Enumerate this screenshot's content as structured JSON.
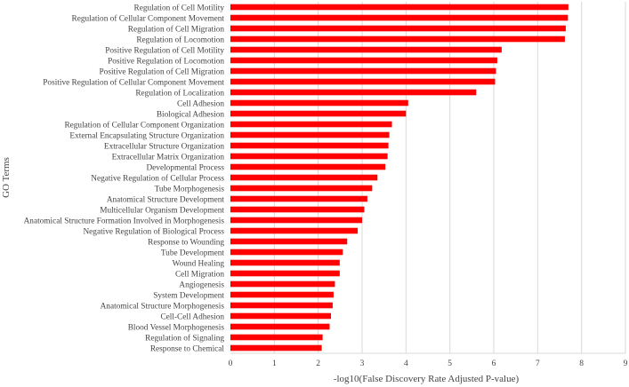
{
  "chart_data": {
    "type": "bar",
    "orientation": "horizontal",
    "xlabel": "-log10(False  Discovery  Rate Adjusted  P-value)",
    "ylabel": "GO Terms",
    "xlim": [
      0,
      9
    ],
    "xticks": [
      0,
      1,
      2,
      3,
      4,
      5,
      6,
      7,
      8,
      9
    ],
    "grid": "vertical",
    "legend": "none",
    "bar_color": "#ff0000",
    "categories": [
      "Regulation of Cell Motility",
      "Regulation of Cellular Component Movement",
      "Regulation of Cell Migration",
      "Regulation of Locomotion",
      "Positive Regulation of Cell Motility",
      "Positive Regulation of Locomotion",
      "Positive Regulation of Cell Migration",
      "Positive Regulation of Cellular Component Movement",
      "Regulation of Localization",
      "Cell Adhesion",
      "Biological Adhesion",
      "Regulation of Cellular Component Organization",
      "External Encapsulating Structure Organization",
      "Extracellular Structure Organization",
      "Extracellular Matrix Organization",
      "Developmental Process",
      "Negative Regulation of Cellular Process",
      "Tube Morphogenesis",
      "Anatomical Structure Development",
      "Multicellular Organism Development",
      "Anatomical Structure Formation Involved in Morphogenesis",
      "Negative Regulation of Biological Process",
      "Response to Wounding",
      "Tube Development",
      "Wound Healing",
      "Cell Migration",
      "Angiogenesis",
      "System Development",
      "Anatomical Structure Morphogenesis",
      "Cell-Cell Adhesion",
      "Blood Vessel Morphogenesis",
      "Regulation of Signaling",
      "Response to Chemical"
    ],
    "values": [
      7.7,
      7.69,
      7.64,
      7.62,
      6.18,
      6.08,
      6.05,
      6.03,
      5.6,
      4.05,
      4.0,
      3.68,
      3.62,
      3.6,
      3.58,
      3.53,
      3.35,
      3.23,
      3.12,
      3.05,
      3.0,
      2.9,
      2.66,
      2.56,
      2.49,
      2.49,
      2.38,
      2.35,
      2.33,
      2.29,
      2.26,
      2.1,
      2.08
    ]
  }
}
